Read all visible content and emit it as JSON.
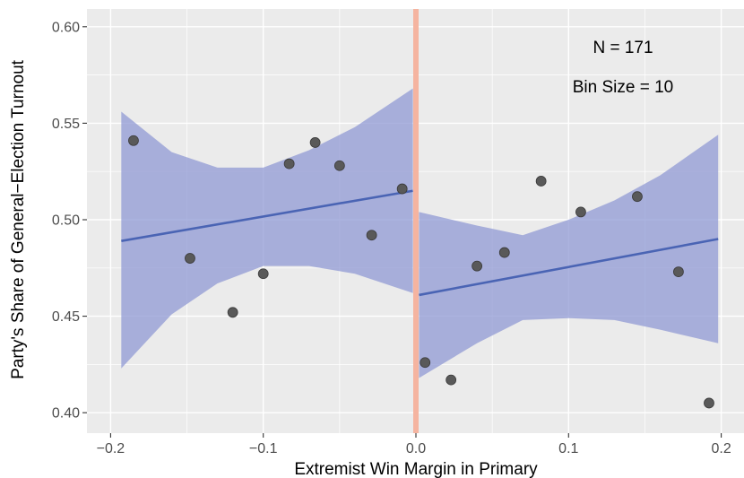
{
  "chart_data": {
    "type": "scatter",
    "xlabel": "Extremist Win Margin in Primary",
    "ylabel": "Party's Share of General−Election Turnout",
    "xlim": [
      -0.22,
      0.22
    ],
    "ylim": [
      0.39,
      0.605
    ],
    "x_ticks": [
      -0.2,
      -0.1,
      0.0,
      0.1,
      0.2
    ],
    "x_tick_labels": [
      "−0.2",
      "−0.1",
      "0.0",
      "0.1",
      "0.2"
    ],
    "y_ticks": [
      0.4,
      0.45,
      0.5,
      0.55,
      0.6
    ],
    "y_tick_labels": [
      "0.40",
      "0.45",
      "0.50",
      "0.55",
      "0.60"
    ],
    "grid": true,
    "annotations": [
      "N = 171",
      "Bin Size = 10"
    ],
    "cutoff_x": 0.0,
    "colors": {
      "panel": "#ebebeb",
      "grid": "#ffffff",
      "points": "#595959",
      "fit_line": "#4a64b4",
      "ribbon": "#8c96d2",
      "cutoff": "#f5b4a0"
    },
    "points": [
      {
        "x": -0.185,
        "y": 0.541
      },
      {
        "x": -0.148,
        "y": 0.48
      },
      {
        "x": -0.12,
        "y": 0.452
      },
      {
        "x": -0.1,
        "y": 0.472
      },
      {
        "x": -0.083,
        "y": 0.529
      },
      {
        "x": -0.066,
        "y": 0.54
      },
      {
        "x": -0.05,
        "y": 0.528
      },
      {
        "x": -0.029,
        "y": 0.492
      },
      {
        "x": -0.009,
        "y": 0.516
      },
      {
        "x": 0.006,
        "y": 0.426
      },
      {
        "x": 0.023,
        "y": 0.417
      },
      {
        "x": 0.04,
        "y": 0.476
      },
      {
        "x": 0.058,
        "y": 0.483
      },
      {
        "x": 0.082,
        "y": 0.52
      },
      {
        "x": 0.108,
        "y": 0.504
      },
      {
        "x": 0.145,
        "y": 0.512
      },
      {
        "x": 0.172,
        "y": 0.473
      },
      {
        "x": 0.192,
        "y": 0.405
      }
    ],
    "fits": [
      {
        "x": [
          -0.193,
          -0.16,
          -0.13,
          -0.1,
          -0.07,
          -0.04,
          -0.002
        ],
        "y": [
          0.489,
          0.493,
          0.497,
          0.502,
          0.506,
          0.51,
          0.515
        ],
        "lower": [
          0.423,
          0.451,
          0.467,
          0.476,
          0.476,
          0.472,
          0.462
        ],
        "upper": [
          0.556,
          0.535,
          0.527,
          0.527,
          0.536,
          0.548,
          0.568
        ]
      },
      {
        "x": [
          0.002,
          0.04,
          0.07,
          0.1,
          0.13,
          0.16,
          0.198
        ],
        "y": [
          0.461,
          0.466,
          0.47,
          0.474,
          0.479,
          0.483,
          0.49
        ],
        "lower": [
          0.418,
          0.436,
          0.448,
          0.449,
          0.448,
          0.443,
          0.436
        ],
        "upper": [
          0.504,
          0.497,
          0.492,
          0.5,
          0.51,
          0.523,
          0.544
        ]
      }
    ]
  }
}
